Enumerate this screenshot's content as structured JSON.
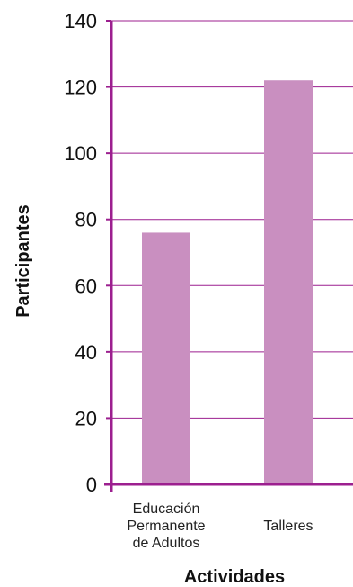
{
  "chart_data": {
    "type": "bar",
    "categories": [
      [
        "Educación",
        "Permanente",
        "de Adultos"
      ],
      [
        "Talleres"
      ]
    ],
    "values": [
      76,
      122
    ],
    "xlabel": "Actividades",
    "ylabel": "Participantes",
    "ylim": [
      0,
      140
    ],
    "yticks": [
      0,
      20,
      40,
      60,
      80,
      100,
      120,
      140
    ],
    "grid": true,
    "legend": "none",
    "colors": {
      "bar": "#c98fc0",
      "axis": "#9c1f8f",
      "grid": "#9c1f8f"
    }
  }
}
